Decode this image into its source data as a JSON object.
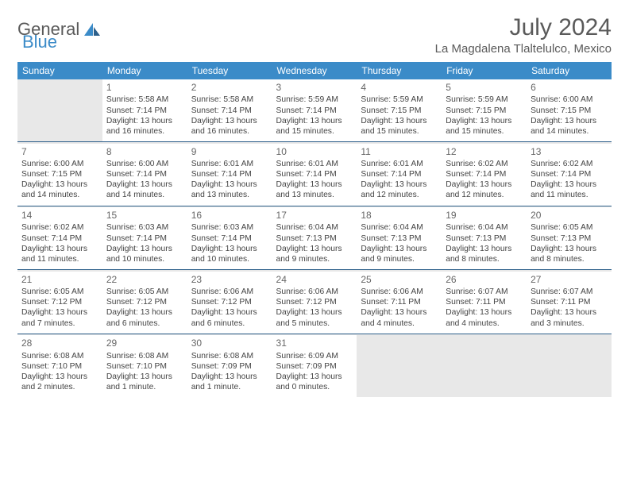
{
  "brand": {
    "word1": "General",
    "word2": "Blue",
    "icon_color": "#3b8bc8"
  },
  "title": "July 2024",
  "location": "La Magdalena Tlaltelulco, Mexico",
  "colors": {
    "header_bg": "#3b8bc8",
    "header_fg": "#ffffff",
    "text": "#444444",
    "rule": "#2d5f8a",
    "shade": "#e8e8e8"
  },
  "day_headers": [
    "Sunday",
    "Monday",
    "Tuesday",
    "Wednesday",
    "Thursday",
    "Friday",
    "Saturday"
  ],
  "weeks": [
    [
      null,
      {
        "n": "1",
        "sr": "Sunrise: 5:58 AM",
        "ss": "Sunset: 7:14 PM",
        "d1": "Daylight: 13 hours",
        "d2": "and 16 minutes."
      },
      {
        "n": "2",
        "sr": "Sunrise: 5:58 AM",
        "ss": "Sunset: 7:14 PM",
        "d1": "Daylight: 13 hours",
        "d2": "and 16 minutes."
      },
      {
        "n": "3",
        "sr": "Sunrise: 5:59 AM",
        "ss": "Sunset: 7:14 PM",
        "d1": "Daylight: 13 hours",
        "d2": "and 15 minutes."
      },
      {
        "n": "4",
        "sr": "Sunrise: 5:59 AM",
        "ss": "Sunset: 7:15 PM",
        "d1": "Daylight: 13 hours",
        "d2": "and 15 minutes."
      },
      {
        "n": "5",
        "sr": "Sunrise: 5:59 AM",
        "ss": "Sunset: 7:15 PM",
        "d1": "Daylight: 13 hours",
        "d2": "and 15 minutes."
      },
      {
        "n": "6",
        "sr": "Sunrise: 6:00 AM",
        "ss": "Sunset: 7:15 PM",
        "d1": "Daylight: 13 hours",
        "d2": "and 14 minutes."
      }
    ],
    [
      {
        "n": "7",
        "sr": "Sunrise: 6:00 AM",
        "ss": "Sunset: 7:15 PM",
        "d1": "Daylight: 13 hours",
        "d2": "and 14 minutes."
      },
      {
        "n": "8",
        "sr": "Sunrise: 6:00 AM",
        "ss": "Sunset: 7:14 PM",
        "d1": "Daylight: 13 hours",
        "d2": "and 14 minutes."
      },
      {
        "n": "9",
        "sr": "Sunrise: 6:01 AM",
        "ss": "Sunset: 7:14 PM",
        "d1": "Daylight: 13 hours",
        "d2": "and 13 minutes."
      },
      {
        "n": "10",
        "sr": "Sunrise: 6:01 AM",
        "ss": "Sunset: 7:14 PM",
        "d1": "Daylight: 13 hours",
        "d2": "and 13 minutes."
      },
      {
        "n": "11",
        "sr": "Sunrise: 6:01 AM",
        "ss": "Sunset: 7:14 PM",
        "d1": "Daylight: 13 hours",
        "d2": "and 12 minutes."
      },
      {
        "n": "12",
        "sr": "Sunrise: 6:02 AM",
        "ss": "Sunset: 7:14 PM",
        "d1": "Daylight: 13 hours",
        "d2": "and 12 minutes."
      },
      {
        "n": "13",
        "sr": "Sunrise: 6:02 AM",
        "ss": "Sunset: 7:14 PM",
        "d1": "Daylight: 13 hours",
        "d2": "and 11 minutes."
      }
    ],
    [
      {
        "n": "14",
        "sr": "Sunrise: 6:02 AM",
        "ss": "Sunset: 7:14 PM",
        "d1": "Daylight: 13 hours",
        "d2": "and 11 minutes."
      },
      {
        "n": "15",
        "sr": "Sunrise: 6:03 AM",
        "ss": "Sunset: 7:14 PM",
        "d1": "Daylight: 13 hours",
        "d2": "and 10 minutes."
      },
      {
        "n": "16",
        "sr": "Sunrise: 6:03 AM",
        "ss": "Sunset: 7:14 PM",
        "d1": "Daylight: 13 hours",
        "d2": "and 10 minutes."
      },
      {
        "n": "17",
        "sr": "Sunrise: 6:04 AM",
        "ss": "Sunset: 7:13 PM",
        "d1": "Daylight: 13 hours",
        "d2": "and 9 minutes."
      },
      {
        "n": "18",
        "sr": "Sunrise: 6:04 AM",
        "ss": "Sunset: 7:13 PM",
        "d1": "Daylight: 13 hours",
        "d2": "and 9 minutes."
      },
      {
        "n": "19",
        "sr": "Sunrise: 6:04 AM",
        "ss": "Sunset: 7:13 PM",
        "d1": "Daylight: 13 hours",
        "d2": "and 8 minutes."
      },
      {
        "n": "20",
        "sr": "Sunrise: 6:05 AM",
        "ss": "Sunset: 7:13 PM",
        "d1": "Daylight: 13 hours",
        "d2": "and 8 minutes."
      }
    ],
    [
      {
        "n": "21",
        "sr": "Sunrise: 6:05 AM",
        "ss": "Sunset: 7:12 PM",
        "d1": "Daylight: 13 hours",
        "d2": "and 7 minutes."
      },
      {
        "n": "22",
        "sr": "Sunrise: 6:05 AM",
        "ss": "Sunset: 7:12 PM",
        "d1": "Daylight: 13 hours",
        "d2": "and 6 minutes."
      },
      {
        "n": "23",
        "sr": "Sunrise: 6:06 AM",
        "ss": "Sunset: 7:12 PM",
        "d1": "Daylight: 13 hours",
        "d2": "and 6 minutes."
      },
      {
        "n": "24",
        "sr": "Sunrise: 6:06 AM",
        "ss": "Sunset: 7:12 PM",
        "d1": "Daylight: 13 hours",
        "d2": "and 5 minutes."
      },
      {
        "n": "25",
        "sr": "Sunrise: 6:06 AM",
        "ss": "Sunset: 7:11 PM",
        "d1": "Daylight: 13 hours",
        "d2": "and 4 minutes."
      },
      {
        "n": "26",
        "sr": "Sunrise: 6:07 AM",
        "ss": "Sunset: 7:11 PM",
        "d1": "Daylight: 13 hours",
        "d2": "and 4 minutes."
      },
      {
        "n": "27",
        "sr": "Sunrise: 6:07 AM",
        "ss": "Sunset: 7:11 PM",
        "d1": "Daylight: 13 hours",
        "d2": "and 3 minutes."
      }
    ],
    [
      {
        "n": "28",
        "sr": "Sunrise: 6:08 AM",
        "ss": "Sunset: 7:10 PM",
        "d1": "Daylight: 13 hours",
        "d2": "and 2 minutes."
      },
      {
        "n": "29",
        "sr": "Sunrise: 6:08 AM",
        "ss": "Sunset: 7:10 PM",
        "d1": "Daylight: 13 hours",
        "d2": "and 1 minute."
      },
      {
        "n": "30",
        "sr": "Sunrise: 6:08 AM",
        "ss": "Sunset: 7:09 PM",
        "d1": "Daylight: 13 hours",
        "d2": "and 1 minute."
      },
      {
        "n": "31",
        "sr": "Sunrise: 6:09 AM",
        "ss": "Sunset: 7:09 PM",
        "d1": "Daylight: 13 hours",
        "d2": "and 0 minutes."
      },
      null,
      null,
      null
    ]
  ]
}
